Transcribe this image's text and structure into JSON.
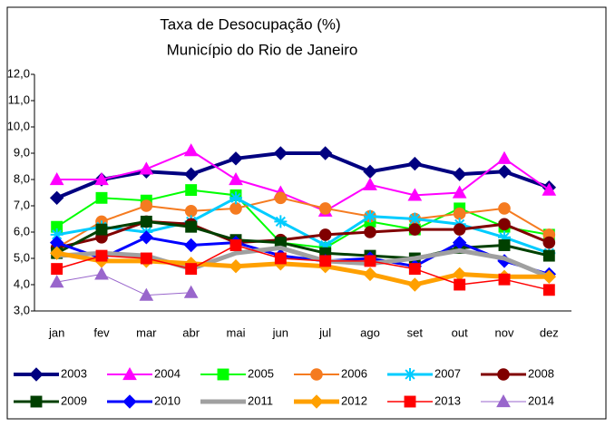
{
  "chart_data": {
    "type": "line",
    "title": "Taxa de Desocupação (%)",
    "subtitle": "Município do Rio de Janeiro",
    "categories": [
      "jan",
      "fev",
      "mar",
      "abr",
      "mai",
      "jun",
      "jul",
      "ago",
      "set",
      "out",
      "nov",
      "dez"
    ],
    "ylim": [
      3,
      12
    ],
    "yticks": [
      {
        "value": 3,
        "label": "3,0"
      },
      {
        "value": 4,
        "label": "4,0"
      },
      {
        "value": 5,
        "label": "5,0"
      },
      {
        "value": 6,
        "label": "6,0"
      },
      {
        "value": 7,
        "label": "7,0"
      },
      {
        "value": 8,
        "label": "8,0"
      },
      {
        "value": 9,
        "label": "9,0"
      },
      {
        "value": 10,
        "label": "10,0"
      },
      {
        "value": 11,
        "label": "11,0"
      },
      {
        "value": 12,
        "label": "12,0"
      }
    ],
    "grid": false,
    "legend": "bottom",
    "series": [
      {
        "name": "2003",
        "color": "#000080",
        "marker": "diamond",
        "line_width": 4,
        "values": [
          7.3,
          8.0,
          8.3,
          8.2,
          8.8,
          9.0,
          9.0,
          8.3,
          8.6,
          8.2,
          8.3,
          7.7
        ]
      },
      {
        "name": "2004",
        "color": "#ff00ff",
        "marker": "triangle",
        "line_width": 2,
        "values": [
          8.0,
          8.0,
          8.4,
          9.1,
          8.0,
          7.5,
          6.8,
          7.8,
          7.4,
          7.5,
          8.8,
          7.6
        ]
      },
      {
        "name": "2005",
        "color": "#00ff00",
        "marker": "square",
        "line_width": 2,
        "values": [
          6.2,
          7.3,
          7.2,
          7.6,
          7.4,
          5.6,
          5.4,
          6.4,
          6.1,
          6.9,
          6.2,
          5.9
        ]
      },
      {
        "name": "2006",
        "color": "#f57b20",
        "marker": "circle",
        "line_width": 2,
        "values": [
          5.4,
          6.4,
          7.0,
          6.8,
          6.9,
          7.3,
          6.9,
          6.6,
          6.5,
          6.7,
          6.9,
          5.9
        ]
      },
      {
        "name": "2007",
        "color": "#00ccff",
        "marker": "asterisk",
        "line_width": 3,
        "values": [
          5.9,
          6.2,
          6.0,
          6.4,
          7.3,
          6.4,
          5.5,
          6.6,
          6.5,
          6.3,
          5.8,
          5.2
        ]
      },
      {
        "name": "2008",
        "color": "#800000",
        "marker": "circle",
        "line_width": 3,
        "values": [
          5.4,
          5.8,
          6.4,
          6.3,
          5.6,
          5.7,
          5.9,
          6.0,
          6.1,
          6.1,
          6.3,
          5.6
        ]
      },
      {
        "name": "2009",
        "color": "#004000",
        "marker": "square",
        "line_width": 3,
        "values": [
          5.2,
          6.1,
          6.4,
          6.2,
          5.7,
          5.6,
          5.2,
          5.1,
          5.0,
          5.4,
          5.5,
          5.1
        ]
      },
      {
        "name": "2010",
        "color": "#0000ff",
        "marker": "diamond",
        "line_width": 3,
        "values": [
          5.6,
          5.0,
          5.8,
          5.5,
          5.6,
          5.1,
          4.9,
          5.0,
          4.7,
          5.6,
          4.9,
          4.4
        ]
      },
      {
        "name": "2011",
        "color": "#a0a0a0",
        "marker": "none",
        "line_width": 5,
        "values": [
          5.1,
          5.2,
          5.1,
          4.6,
          5.2,
          5.4,
          4.9,
          4.8,
          5.0,
          5.3,
          5.0,
          4.3
        ]
      },
      {
        "name": "2012",
        "color": "#ffa000",
        "marker": "diamond",
        "line_width": 5,
        "values": [
          5.2,
          4.9,
          4.9,
          4.8,
          4.7,
          4.8,
          4.7,
          4.4,
          4.0,
          4.4,
          4.3,
          4.3
        ]
      },
      {
        "name": "2013",
        "color": "#ff0000",
        "marker": "square",
        "line_width": 1.5,
        "values": [
          4.6,
          5.1,
          5.0,
          4.6,
          5.5,
          5.0,
          4.9,
          4.9,
          4.6,
          4.0,
          4.2,
          3.8
        ]
      },
      {
        "name": "2014",
        "color": "#9966cc",
        "marker": "triangle",
        "line_width": 1,
        "values": [
          4.1,
          4.4,
          3.6,
          3.7,
          null,
          null,
          null,
          null,
          null,
          null,
          null,
          null
        ]
      }
    ]
  }
}
